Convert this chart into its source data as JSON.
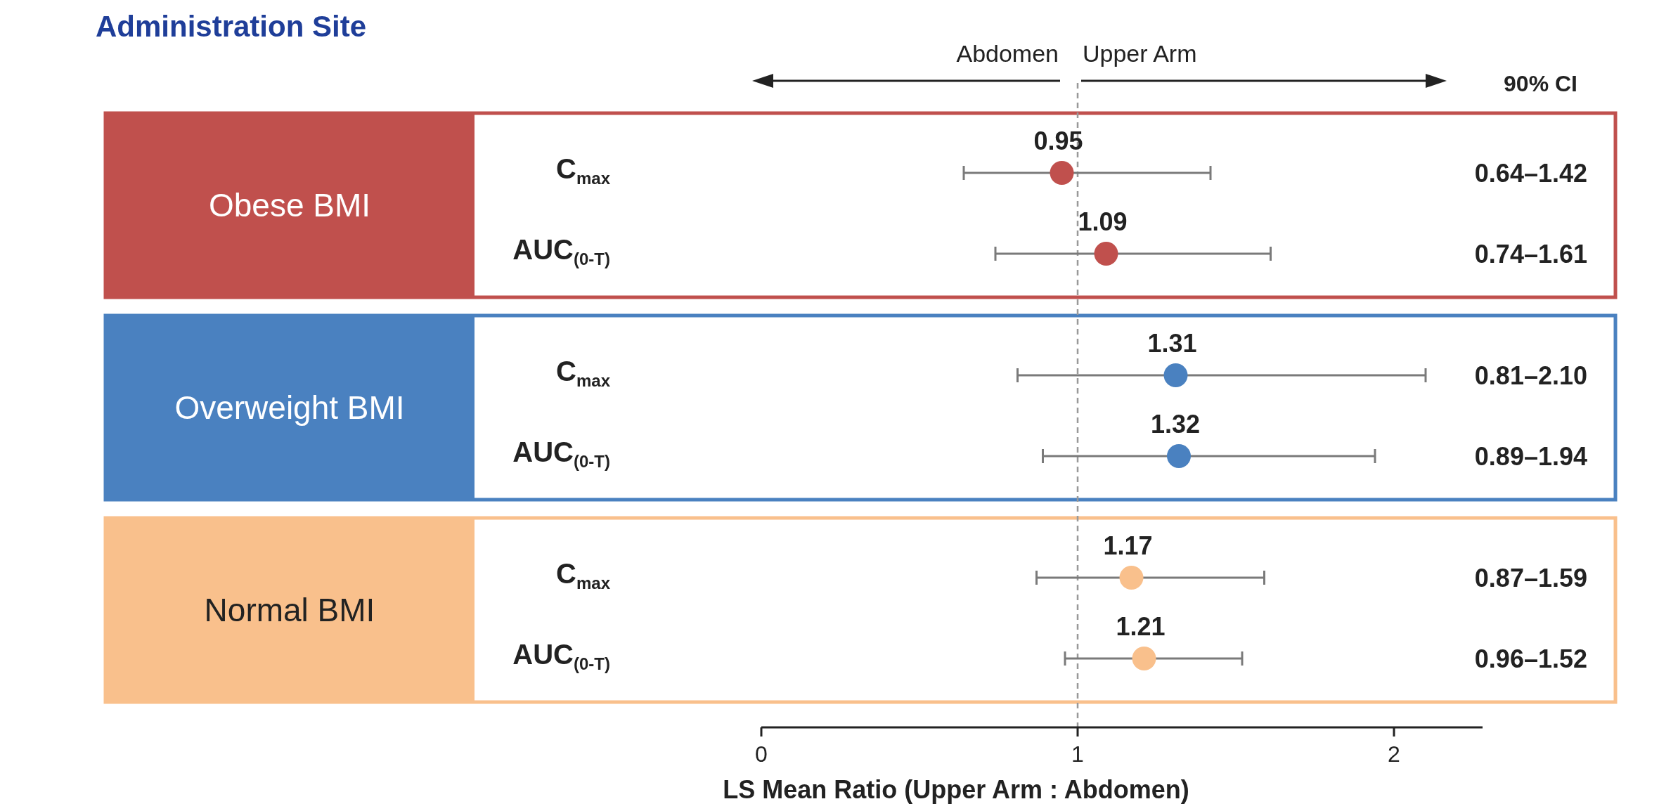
{
  "chart_data": {
    "type": "scatter",
    "orientation": "horizontal",
    "title": "Administration Site",
    "xlabel": "LS Mean Ratio (Upper Arm : Abdomen)",
    "categories": [
      "C$_{max}$",
      "AUC$_{(0-T)}$",
      "C$_{max}$",
      "AUC$_{(0-T)}$",
      "C$_{max}$",
      "AUC$_{(0-T)}$"
    ],
    "series": [
      {
        "color": "#c0504d",
        "values": [
          0.95,
          1.09,
          null,
          null,
          null,
          null
        ],
        "errors": [
          [
            0.64,
            1.42
          ],
          [
            0.74,
            1.61
          ],
          null,
          null,
          null,
          null
        ]
      },
      {
        "color": "#4a81c0",
        "values": [
          null,
          null,
          1.31,
          1.32,
          null,
          null
        ],
        "errors": [
          null,
          null,
          [
            0.81,
            2.1
          ],
          [
            0.89,
            1.94
          ],
          null,
          null
        ]
      },
      {
        "color": "#f9c08c",
        "values": [
          null,
          null,
          null,
          null,
          1.17,
          1.21
        ],
        "errors": [
          null,
          null,
          null,
          null,
          [
            0.87,
            1.59
          ],
          [
            0.96,
            1.52
          ]
        ]
      }
    ],
    "xlim": [
      0,
      2.28
    ],
    "xticks": [
      0,
      1,
      2
    ],
    "marker": "circle",
    "data_labels": true,
    "ref_lines": [
      {
        "axis": "x",
        "value": 1,
        "color": "#999999",
        "line_style": "dashed"
      }
    ],
    "annotations": [
      "Abdomen",
      "Upper Arm",
      "90% CI",
      "Obese BMI",
      "Overweight BMI",
      "Normal BMI",
      "0.64–1.42",
      "0.74–1.61",
      "0.81–2.10",
      "0.89–1.94",
      "0.87–1.59",
      "0.96–1.52"
    ]
  }
}
